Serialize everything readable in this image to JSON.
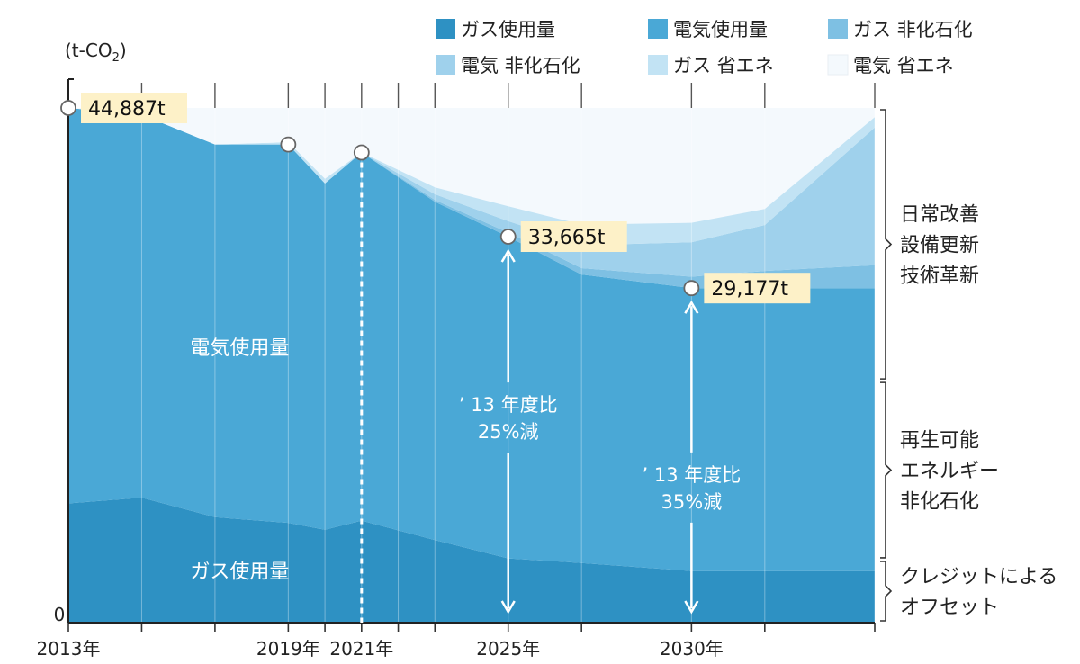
{
  "chart_data": {
    "type": "area",
    "stacked": true,
    "unit_label": "(t-CO",
    "unit_sub": "2",
    "unit_close": ")",
    "y_zero_label": "0",
    "ylim": [
      0,
      45000
    ],
    "x_domain": [
      2013,
      2035
    ],
    "x_ticks": [
      {
        "x": 2013,
        "label": "2013年"
      },
      {
        "x": 2015,
        "label": ""
      },
      {
        "x": 2017,
        "label": ""
      },
      {
        "x": 2019,
        "label": "2019年"
      },
      {
        "x": 2020,
        "label": ""
      },
      {
        "x": 2021,
        "label": "2021年"
      },
      {
        "x": 2022,
        "label": ""
      },
      {
        "x": 2023,
        "label": ""
      },
      {
        "x": 2025,
        "label": "2025年"
      },
      {
        "x": 2027,
        "label": ""
      },
      {
        "x": 2030,
        "label": "2030年"
      },
      {
        "x": 2032,
        "label": ""
      },
      {
        "x": 2035,
        "label": ""
      }
    ],
    "x": [
      2013,
      2015,
      2017,
      2019,
      2020,
      2021,
      2023,
      2025,
      2027,
      2030,
      2032,
      2035
    ],
    "series": [
      {
        "name": "ガス使用量",
        "color": "#2e91c3",
        "values": [
          10400,
          10900,
          9200,
          8700,
          8100,
          8900,
          7200,
          5600,
          5200,
          4500,
          4500,
          4500
        ]
      },
      {
        "name": "電気使用量",
        "color": "#4aa8d6",
        "values": [
          34487,
          33400,
          32500,
          33000,
          30200,
          32100,
          29500,
          28065,
          25165,
          24677,
          24677,
          24677
        ]
      },
      {
        "name": "ガス 非化石化",
        "color": "#7ec0e3",
        "values": [
          0,
          0,
          0,
          0,
          0,
          0,
          160,
          350,
          550,
          1000,
          1500,
          2000
        ]
      },
      {
        "name": "電気 非化石化",
        "color": "#9fd1ec",
        "values": [
          0,
          0,
          0,
          0,
          0,
          0,
          500,
          1000,
          2000,
          3000,
          4000,
          12000
        ]
      },
      {
        "name": "ガス 省エネ",
        "color": "#c2e3f4",
        "values": [
          0,
          0,
          0,
          200,
          400,
          0,
          600,
          1300,
          1800,
          1700,
          1400,
          900
        ]
      },
      {
        "name": "電気 省エネ",
        "color": "#f4f9fd",
        "values": [
          0,
          587,
          2387,
          0,
          0,
          0,
          0,
          0,
          0,
          0,
          0,
          0
        ]
      }
    ],
    "plot_top": 44887,
    "markers": [
      {
        "x": 2013,
        "y": 44887,
        "label": "44,887t"
      },
      {
        "x": 2019,
        "y": 41700
      },
      {
        "x": 2021,
        "y": 41000
      },
      {
        "x": 2025,
        "y": 33665,
        "label": "33,665t"
      },
      {
        "x": 2030,
        "y": 29177,
        "label": "29,177t"
      }
    ],
    "area_labels": [
      {
        "text": "電気使用量",
        "x": 2019,
        "y": 24000
      },
      {
        "text": "ガス使用量",
        "x": 2019,
        "y": 4500
      }
    ],
    "annotations": [
      {
        "x": 2025,
        "from": 33665,
        "to": 0,
        "lines": [
          "’ 13 年度比",
          "25%減"
        ],
        "text_y": 17800
      },
      {
        "x": 2030,
        "from": 29177,
        "to": 0,
        "lines": [
          "’ 13 年度比",
          "35%減"
        ],
        "text_y": 11700
      }
    ],
    "brackets": [
      {
        "from": 44887,
        "to": 21100,
        "lines": [
          "日常改善",
          "設備更新",
          "技術革新"
        ]
      },
      {
        "from": 21100,
        "to": 5500,
        "lines": [
          "再生可能",
          "エネルギー",
          "非化石化"
        ]
      },
      {
        "from": 5500,
        "to": 0,
        "lines": [
          "クレジットによる",
          "オフセット"
        ]
      }
    ],
    "legend_position": "top-right",
    "grid": "vertical"
  }
}
